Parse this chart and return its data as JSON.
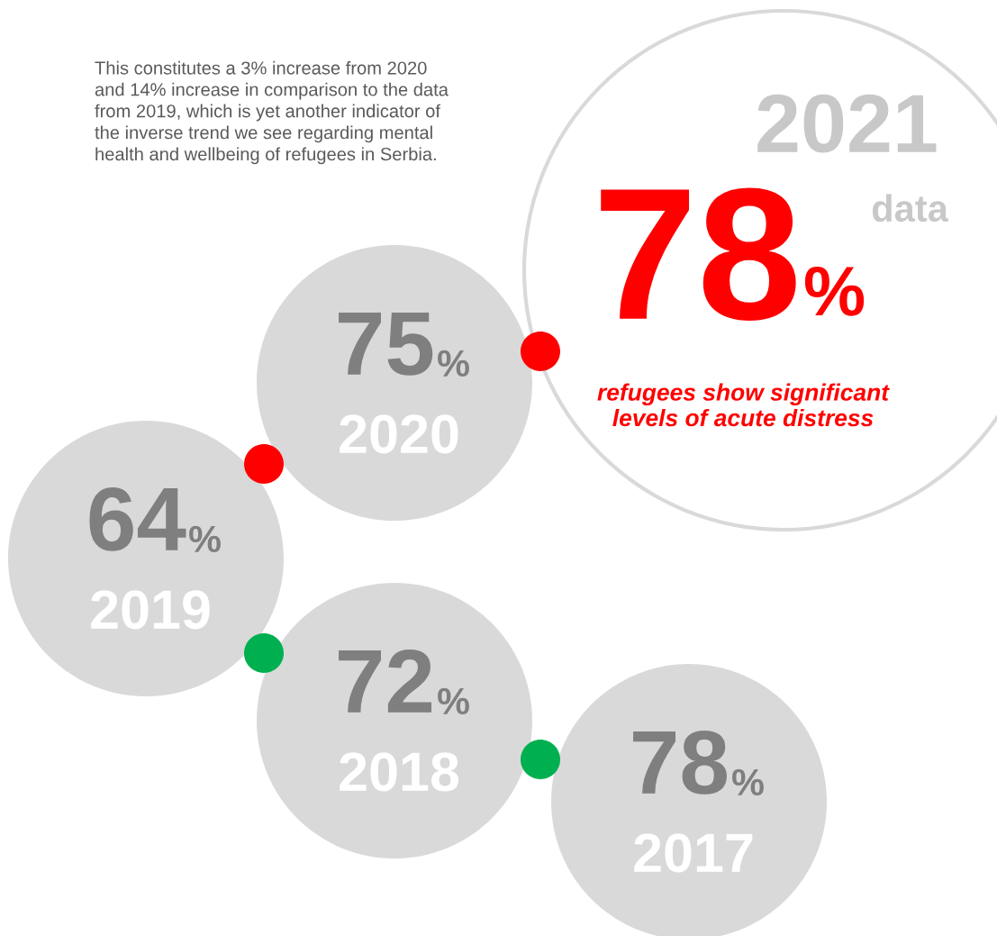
{
  "chart_data": {
    "type": "other",
    "categories": [
      "2021",
      "2020",
      "2019",
      "2018",
      "2017"
    ],
    "values": [
      78,
      75,
      64,
      72,
      78
    ],
    "value_labels": [
      "78%",
      "75%",
      "64%",
      "72%",
      "78%"
    ],
    "colors": [
      "#ffffff",
      "#d9d9d9",
      "#d9d9d9",
      "#d9d9d9",
      "#d9d9d9"
    ],
    "annotations": [
      "This constitutes a 3% increase from 2020\nand 14% increase in comparison to the data\nfrom 2019, which is yet another indicator of\nthe inverse trend we see regarding mental\nhealth and wellbeing of refugees in Serbia.",
      "data",
      "refugees show significant\nlevels of acute distress"
    ]
  }
}
